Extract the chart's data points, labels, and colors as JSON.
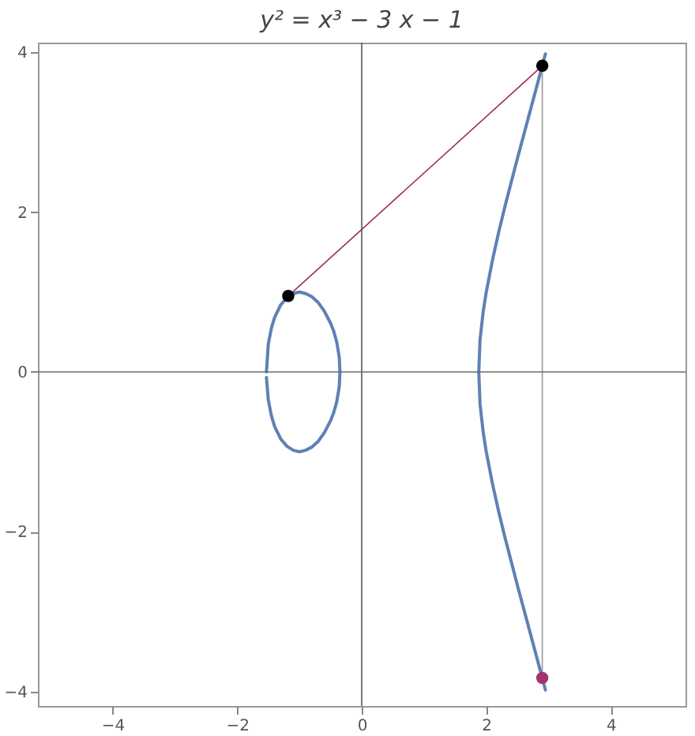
{
  "chart_data": {
    "type": "line",
    "title": "y² = x³ − 3 x − 1",
    "xlim": [
      -5.2,
      5.2
    ],
    "ylim": [
      -4.18,
      4.12
    ],
    "xticks": [
      -4,
      -2,
      0,
      2,
      4
    ],
    "yticks": [
      -4,
      -2,
      0,
      2,
      4
    ],
    "grid": false,
    "marker": "none",
    "ref_lines": [
      {
        "axis": "x",
        "value": 0,
        "color": "#555555"
      },
      {
        "axis": "y",
        "value": 0,
        "color": "#6a6a6a"
      }
    ],
    "series": [
      {
        "color": "#5e81b5",
        "x": [
          -1.53,
          -1.5,
          -1.45,
          -1.4,
          -1.3,
          -1.2,
          -1.1,
          -1.0,
          -0.9,
          -0.8,
          -0.7,
          -0.6,
          -0.5,
          -0.45,
          -0.4,
          -0.36,
          -0.35,
          -0.36,
          -0.4,
          -0.45,
          -0.5,
          -0.6,
          -0.7,
          -0.8,
          -0.9,
          -1.0,
          -1.1,
          -1.2,
          -1.3,
          -1.4,
          -1.45,
          -1.5,
          -1.53
        ],
        "values": [
          0,
          0.35,
          0.55,
          0.68,
          0.84,
          0.93,
          0.98,
          1,
          0.98,
          0.94,
          0.87,
          0.76,
          0.61,
          0.51,
          0.37,
          0.18,
          0,
          -0.18,
          -0.37,
          -0.51,
          -0.61,
          -0.76,
          -0.87,
          -0.94,
          -0.98,
          -1,
          -0.98,
          -0.93,
          -0.84,
          -0.68,
          -0.55,
          -0.35,
          -0.07
        ]
      },
      {
        "color": "#5e81b5",
        "x": [
          2.95,
          2.9,
          2.8,
          2.7,
          2.6,
          2.5,
          2.4,
          2.3,
          2.2,
          2.1,
          2.0,
          1.95,
          1.9,
          1.88,
          1.9,
          1.95,
          2.0,
          2.1,
          2.2,
          2.3,
          2.4,
          2.5,
          2.6,
          2.7,
          2.8,
          2.9,
          2.95
        ],
        "values": [
          -3.98,
          -3.83,
          -3.54,
          -3.25,
          -2.96,
          -2.67,
          -2.37,
          -2.07,
          -1.75,
          -1.4,
          -1,
          -0.75,
          -0.4,
          0,
          0.4,
          0.75,
          1,
          1.4,
          1.75,
          2.07,
          2.37,
          2.67,
          2.96,
          3.25,
          3.54,
          3.83,
          3.98
        ]
      },
      {
        "color": "#9e2a5e",
        "x": [
          -1.18,
          2.9
        ],
        "values": [
          0.95,
          3.83
        ]
      },
      {
        "color": "#999999",
        "x": [
          2.9,
          2.9
        ],
        "values": [
          -3.83,
          3.83
        ]
      },
      {
        "type": "scatter",
        "marker": "circle",
        "color": "#000000",
        "x": [
          -1.18,
          2.9
        ],
        "values": [
          0.95,
          3.83
        ]
      },
      {
        "type": "scatter",
        "marker": "circle",
        "color": "#a6336b",
        "x": [
          2.9
        ],
        "values": [
          -3.83
        ]
      }
    ]
  }
}
